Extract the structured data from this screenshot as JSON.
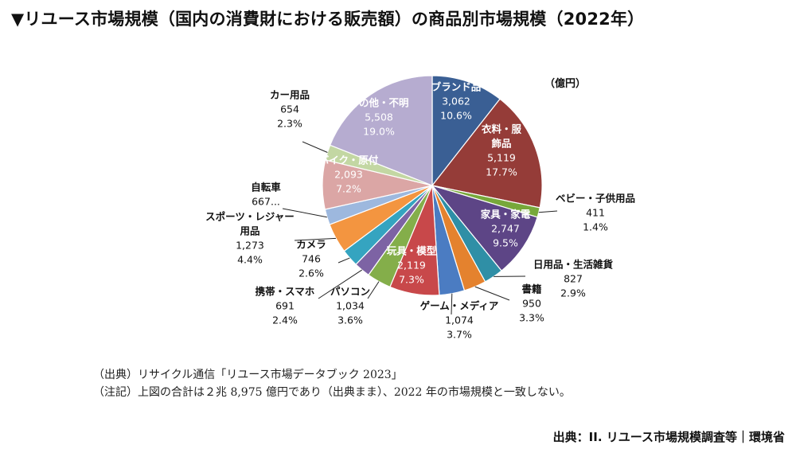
{
  "title": "▼リユース市場規模（国内の消費財における販売額）の商品別市場規模（2022年）",
  "chart_data": {
    "type": "pie",
    "unit": "（億円）",
    "slices": [
      {
        "name": "ブランド品",
        "value_label": "3,062",
        "pct_label": "10.6%",
        "value": 3062,
        "pct": 10.6,
        "color": "#3a5f94"
      },
      {
        "name": "衣料・服飾品",
        "value_label": "5,119",
        "pct_label": "17.7%",
        "value": 5119,
        "pct": 17.7,
        "color": "#953c38"
      },
      {
        "name": "ベビー・子供用品",
        "value_label": "411",
        "pct_label": "1.4%",
        "value": 411,
        "pct": 1.4,
        "color": "#77a83a"
      },
      {
        "name": "家具・家電",
        "value_label": "2,747",
        "pct_label": "9.5%",
        "value": 2747,
        "pct": 9.5,
        "color": "#5d4586"
      },
      {
        "name": "日用品・生活雑貨",
        "value_label": "827",
        "pct_label": "2.9%",
        "value": 827,
        "pct": 2.9,
        "color": "#2f8fa6"
      },
      {
        "name": "書籍",
        "value_label": "950",
        "pct_label": "3.3%",
        "value": 950,
        "pct": 3.3,
        "color": "#e4822e"
      },
      {
        "name": "ゲーム・メディア",
        "value_label": "1,074",
        "pct_label": "3.7%",
        "value": 1074,
        "pct": 3.7,
        "color": "#4b7cc2"
      },
      {
        "name": "玩具・模型",
        "value_label": "2,119",
        "pct_label": "7.3%",
        "value": 2119,
        "pct": 7.3,
        "color": "#c8484a"
      },
      {
        "name": "パソコン",
        "value_label": "1,034",
        "pct_label": "3.6%",
        "value": 1034,
        "pct": 3.6,
        "color": "#84ae4a"
      },
      {
        "name": "携帯・スマホ",
        "value_label": "691",
        "pct_label": "2.4%",
        "value": 691,
        "pct": 2.4,
        "color": "#7d63a4"
      },
      {
        "name": "カメラ",
        "value_label": "746",
        "pct_label": "2.6%",
        "value": 746,
        "pct": 2.6,
        "color": "#35a4c0"
      },
      {
        "name": "スポーツ・レジャー用品",
        "value_label": "1,273",
        "pct_label": "4.4%",
        "value": 1273,
        "pct": 4.4,
        "color": "#f39540"
      },
      {
        "name": "自転車",
        "value_label": "667...",
        "pct_label": "",
        "value": 667,
        "pct": 2.3,
        "color": "#9db8de"
      },
      {
        "name": "バイク・原付",
        "value_label": "2,093",
        "pct_label": "7.2%",
        "value": 2093,
        "pct": 7.2,
        "color": "#dba6a5"
      },
      {
        "name": "カー用品",
        "value_label": "654",
        "pct_label": "2.3%",
        "value": 654,
        "pct": 2.3,
        "color": "#c3d7a3"
      },
      {
        "name": "その他・不明",
        "value_label": "5,508",
        "pct_label": "19.0%",
        "value": 5508,
        "pct": 19.0,
        "color": "#b6acd0"
      }
    ]
  },
  "notes": [
    "（出典）リサイクル通信「リユース市場データブック 2023」",
    "（注記）上図の合計は２兆 8,975 億円であり（出典まま）、2022 年の市場規模と一致しない。"
  ],
  "source": "出典：II. リユース市場規模調査等｜環境省"
}
